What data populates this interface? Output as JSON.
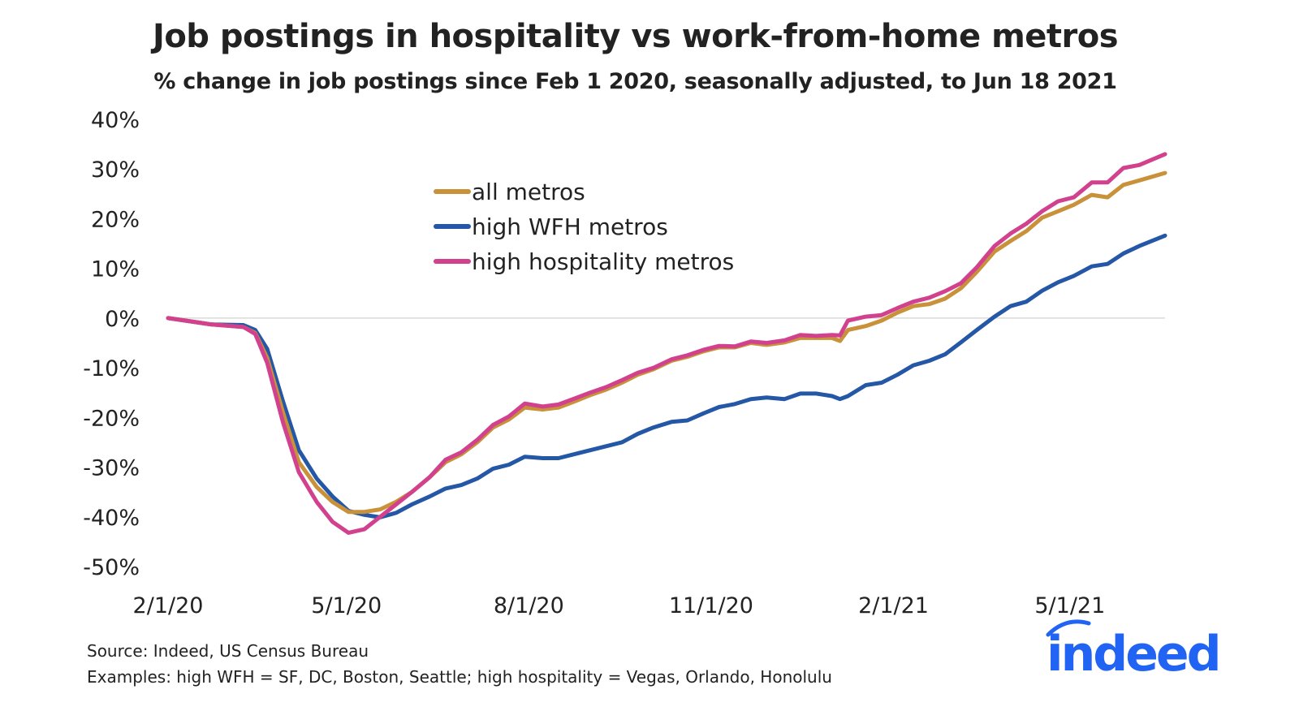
{
  "chart_data": {
    "type": "line",
    "title": "Job postings in hospitality vs work-from-home metros",
    "subtitle": "% change in job postings since Feb 1 2020, seasonally adjusted, to Jun 18 2021",
    "xlabel": "",
    "ylabel": "",
    "ylim": [
      -50,
      40
    ],
    "xlim": [
      "2020-02-01",
      "2021-06-18"
    ],
    "yticks": [
      "40%",
      "30%",
      "20%",
      "10%",
      "0%",
      "-10%",
      "-20%",
      "-30%",
      "-40%",
      "-50%"
    ],
    "ytick_values": [
      40,
      30,
      20,
      10,
      0,
      -10,
      -20,
      -30,
      -40,
      -50
    ],
    "xticks": [
      "2/1/20",
      "5/1/20",
      "8/1/20",
      "11/1/20",
      "2/1/21",
      "5/1/21"
    ],
    "xtick_dates": [
      "2020-02-01",
      "2020-05-01",
      "2020-08-01",
      "2020-11-01",
      "2021-02-01",
      "2021-05-01"
    ],
    "grid": "zero line only",
    "legend_placement": "upper-center",
    "x": [
      "2020-02-01",
      "2020-02-23",
      "2020-03-10",
      "2020-03-16",
      "2020-03-22",
      "2020-03-30",
      "2020-04-07",
      "2020-04-16",
      "2020-04-24",
      "2020-05-02",
      "2020-05-10",
      "2020-05-18",
      "2020-05-26",
      "2020-06-03",
      "2020-06-12",
      "2020-06-20",
      "2020-06-28",
      "2020-07-06",
      "2020-07-14",
      "2020-07-22",
      "2020-07-30",
      "2020-08-08",
      "2020-08-16",
      "2020-08-24",
      "2020-09-01",
      "2020-09-09",
      "2020-09-17",
      "2020-09-25",
      "2020-10-03",
      "2020-10-12",
      "2020-10-20",
      "2020-10-28",
      "2020-11-05",
      "2020-11-13",
      "2020-11-21",
      "2020-11-29",
      "2020-12-08",
      "2020-12-16",
      "2020-12-24",
      "2021-01-01",
      "2021-01-05",
      "2021-01-09",
      "2021-01-18",
      "2021-01-26",
      "2021-02-03",
      "2021-02-11",
      "2021-02-19",
      "2021-02-27",
      "2021-03-07",
      "2021-03-15",
      "2021-03-24",
      "2021-04-01",
      "2021-04-09",
      "2021-04-17",
      "2021-04-25",
      "2021-05-03",
      "2021-05-12",
      "2021-05-20",
      "2021-05-28",
      "2021-06-05",
      "2021-06-18"
    ],
    "series": [
      {
        "name": "high WFH metros",
        "color": "#2557A7",
        "values": [
          0,
          -1.3,
          -1.4,
          -2.4,
          -6.2,
          -16.8,
          -26.6,
          -32.3,
          -35.9,
          -38.8,
          -39.6,
          -40.1,
          -39.2,
          -37.5,
          -35.9,
          -34.3,
          -33.6,
          -32.3,
          -30.3,
          -29.5,
          -27.9,
          -28.2,
          -28.2,
          -27.4,
          -26.6,
          -25.8,
          -25,
          -23.3,
          -22,
          -20.9,
          -20.6,
          -19.2,
          -17.9,
          -17.3,
          -16.3,
          -16,
          -16.3,
          -15.2,
          -15.2,
          -15.7,
          -16.3,
          -15.7,
          -13.5,
          -13,
          -11.4,
          -9.5,
          -8.6,
          -7.3,
          -4.9,
          -2.4,
          0.3,
          2.4,
          3.3,
          5.5,
          7.2,
          8.5,
          10.4,
          10.9,
          13,
          14.5,
          16.6
        ]
      },
      {
        "name": "all metros",
        "color": "#C8913A",
        "values": [
          0,
          -1.3,
          -1.8,
          -3,
          -8,
          -19,
          -29,
          -34,
          -37,
          -39,
          -39,
          -38.5,
          -37,
          -35,
          -32,
          -29,
          -27.4,
          -25,
          -22,
          -20.4,
          -18,
          -18.4,
          -18,
          -16.8,
          -15.5,
          -14.4,
          -13,
          -11.4,
          -10.3,
          -8.6,
          -7.8,
          -6.7,
          -5.9,
          -5.9,
          -5,
          -5.4,
          -4.9,
          -4,
          -4,
          -4,
          -4.6,
          -2.4,
          -1.6,
          -0.5,
          1.1,
          2.4,
          2.8,
          3.9,
          6,
          9.3,
          13.4,
          15.5,
          17.5,
          20.2,
          21.5,
          22.8,
          24.8,
          24.3,
          26.8,
          27.7,
          29.2
        ]
      },
      {
        "name": "high hospitality metros",
        "color": "#D1418E",
        "values": [
          0,
          -1.3,
          -1.8,
          -3.2,
          -9,
          -21,
          -31,
          -37,
          -41,
          -43.2,
          -42.5,
          -40,
          -37.5,
          -35,
          -32,
          -28.5,
          -27,
          -24.5,
          -21.5,
          -19.8,
          -17.2,
          -17.8,
          -17.4,
          -16.2,
          -15,
          -13.9,
          -12.5,
          -11,
          -10,
          -8.3,
          -7.5,
          -6.4,
          -5.6,
          -5.7,
          -4.7,
          -5,
          -4.5,
          -3.4,
          -3.6,
          -3.4,
          -3.5,
          -0.5,
          0.3,
          0.6,
          2,
          3.3,
          4.1,
          5.4,
          7,
          10.2,
          14.5,
          17,
          19,
          21.5,
          23.5,
          24.3,
          27.3,
          27.3,
          30.2,
          30.8,
          33
        ]
      }
    ],
    "legend": [
      "all metros",
      "high WFH metros",
      "high hospitality metros"
    ],
    "legend_colors": [
      "#C8913A",
      "#2557A7",
      "#D1418E"
    ]
  },
  "footer": {
    "source": "Source: Indeed, US Census Bureau",
    "examples": "Examples: high WFH = SF, DC, Boston, Seattle; high hospitality = Vegas, Orlando, Honolulu"
  },
  "logo": {
    "text": "indeed",
    "color": "#2164F3"
  }
}
